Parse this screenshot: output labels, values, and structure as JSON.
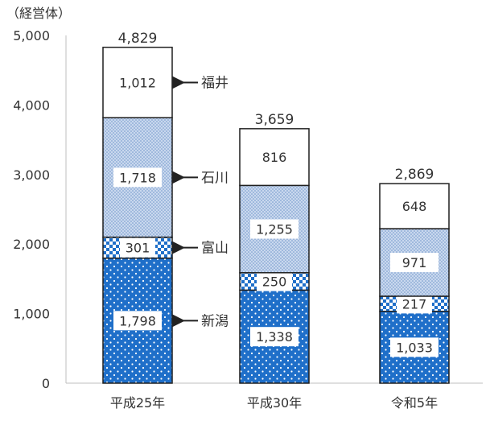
{
  "chart_data": {
    "type": "bar",
    "stacked": true,
    "unit_label": "（経営体）",
    "categories": [
      "平成25年",
      "平成30年",
      "令和5年"
    ],
    "series": [
      {
        "name": "新潟",
        "values": [
          1798,
          1338,
          1033
        ]
      },
      {
        "name": "富山",
        "values": [
          301,
          250,
          217
        ]
      },
      {
        "name": "石川",
        "values": [
          1718,
          1255,
          971
        ]
      },
      {
        "name": "福井",
        "values": [
          1012,
          816,
          648
        ]
      }
    ],
    "value_labels": [
      [
        "1,798",
        "1,338",
        "1,033"
      ],
      [
        "301",
        "250",
        "217"
      ],
      [
        "1,718",
        "1,255",
        "971"
      ],
      [
        "1,012",
        "816",
        "648"
      ]
    ],
    "totals": [
      4829,
      3659,
      2869
    ],
    "total_labels": [
      "4,829",
      "3,659",
      "2,869"
    ],
    "ylim": [
      0,
      5000
    ],
    "yticks": [
      0,
      1000,
      2000,
      3000,
      4000,
      5000
    ],
    "ytick_labels": [
      "0",
      "1,000",
      "2,000",
      "3,000",
      "4,000",
      "5,000"
    ],
    "grid": false,
    "legend": "arrow labels beside first bar"
  }
}
